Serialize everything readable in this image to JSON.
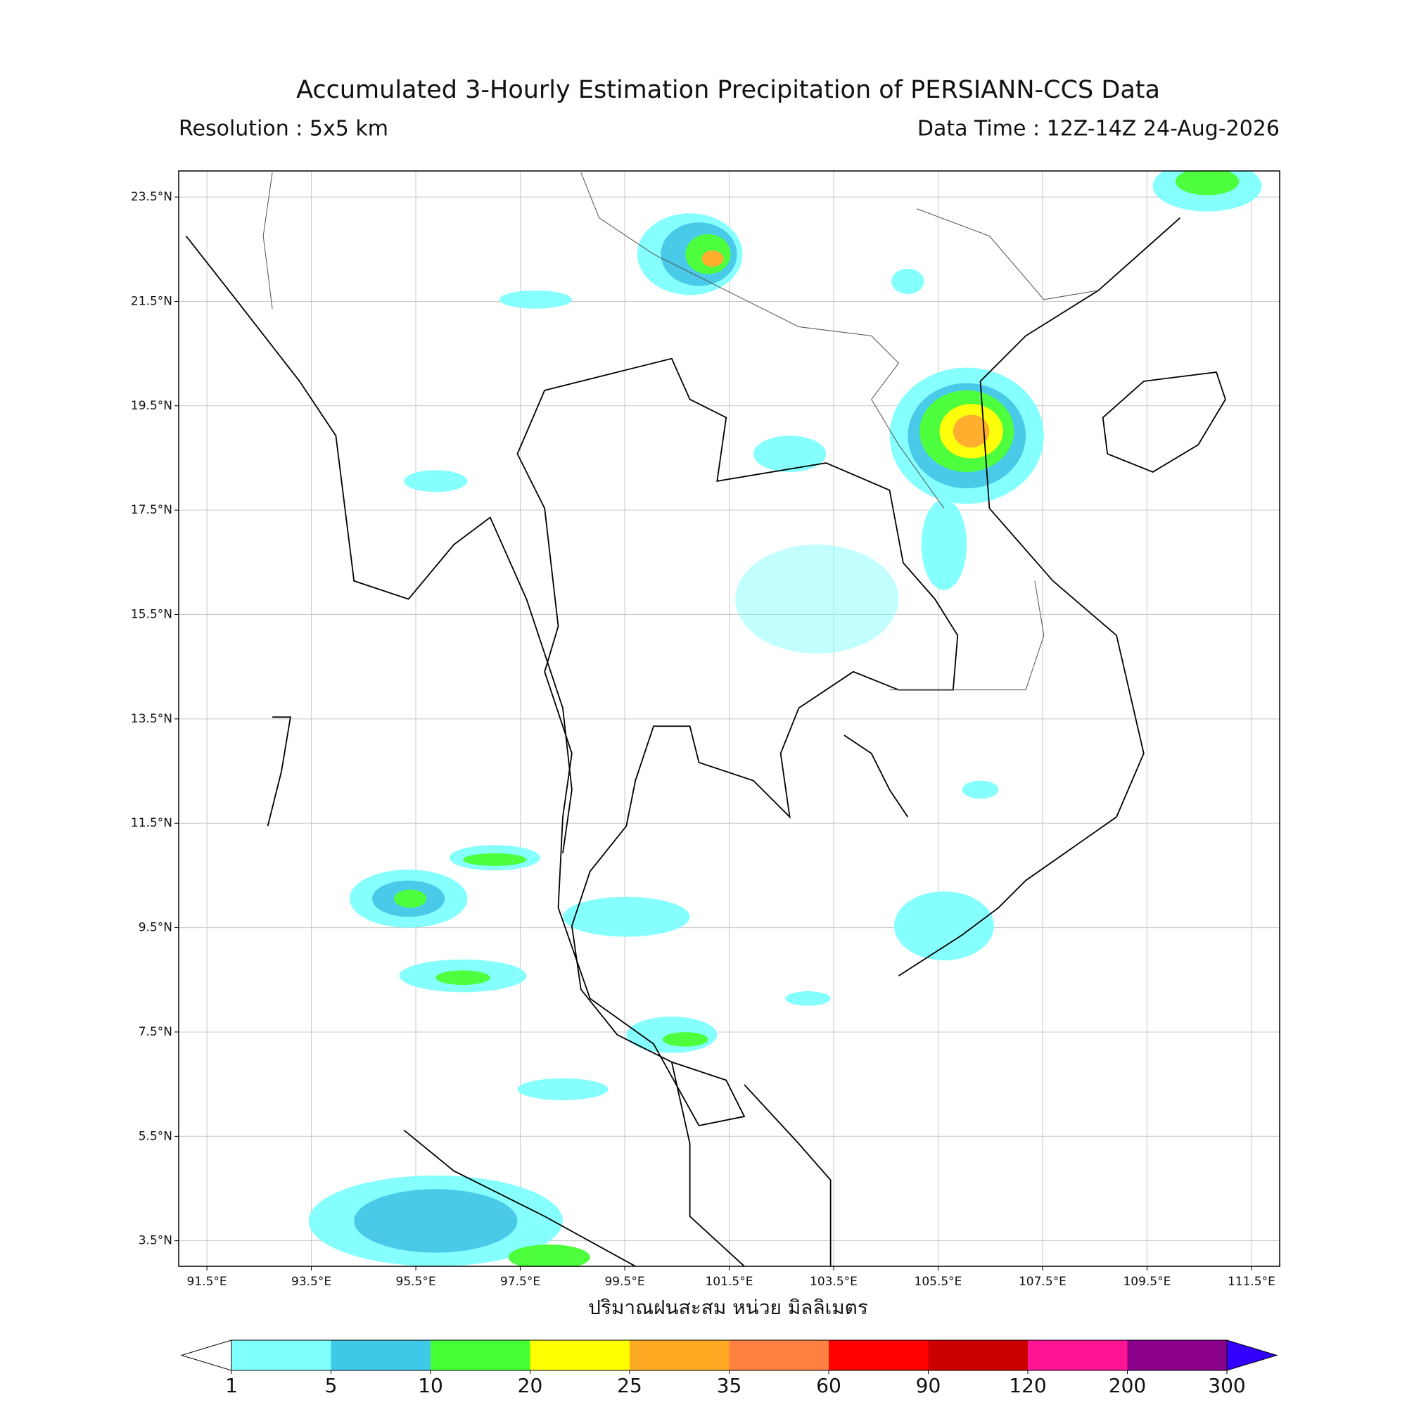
{
  "header": {
    "title": "Accumulated 3-Hourly Estimation Precipitation of PERSIANN-CCS Data",
    "resolution": "Resolution : 5x5 km",
    "data_time": "Data Time : 12Z-14Z 24-Aug-2026"
  },
  "map": {
    "lon_range": [
      90.96,
      112.04
    ],
    "lat_range": [
      3.01,
      24.0
    ],
    "lat_ticks": [
      {
        "value": 23.5,
        "label": "23.5°N"
      },
      {
        "value": 21.5,
        "label": "21.5°N"
      },
      {
        "value": 19.5,
        "label": "19.5°N"
      },
      {
        "value": 17.5,
        "label": "17.5°N"
      },
      {
        "value": 15.5,
        "label": "15.5°N"
      },
      {
        "value": 13.5,
        "label": "13.5°N"
      },
      {
        "value": 11.5,
        "label": "11.5°N"
      },
      {
        "value": 9.5,
        "label": "9.5°N"
      },
      {
        "value": 7.5,
        "label": "7.5°N"
      },
      {
        "value": 5.5,
        "label": "5.5°N"
      },
      {
        "value": 3.5,
        "label": "3.5°N"
      }
    ],
    "lon_ticks": [
      {
        "value": 91.5,
        "label": "91.5°E"
      },
      {
        "value": 93.5,
        "label": "93.5°E"
      },
      {
        "value": 95.5,
        "label": "95.5°E"
      },
      {
        "value": 97.5,
        "label": "97.5°E"
      },
      {
        "value": 99.5,
        "label": "99.5°E"
      },
      {
        "value": 101.5,
        "label": "101.5°E"
      },
      {
        "value": 103.5,
        "label": "103.5°E"
      },
      {
        "value": 105.5,
        "label": "105.5°E"
      },
      {
        "value": 107.5,
        "label": "107.5°E"
      },
      {
        "value": 109.5,
        "label": "109.5°E"
      },
      {
        "value": 111.5,
        "label": "111.5°E"
      }
    ],
    "grid": true
  },
  "colorbar": {
    "label": "ปริมาณฝนสะสม หน่วย มิลลิเมตร",
    "levels": [
      1,
      5,
      10,
      20,
      25,
      35,
      60,
      90,
      120,
      200,
      300
    ],
    "colors": [
      "#80ffff",
      "#40c8e8",
      "#44ff33",
      "#ffff00",
      "#ffaa22",
      "#ff8040",
      "#ff0000",
      "#cc0000",
      "#ff1493",
      "#8b008b"
    ],
    "under_color": "#ffffff",
    "over_color": "#3300ff"
  }
}
